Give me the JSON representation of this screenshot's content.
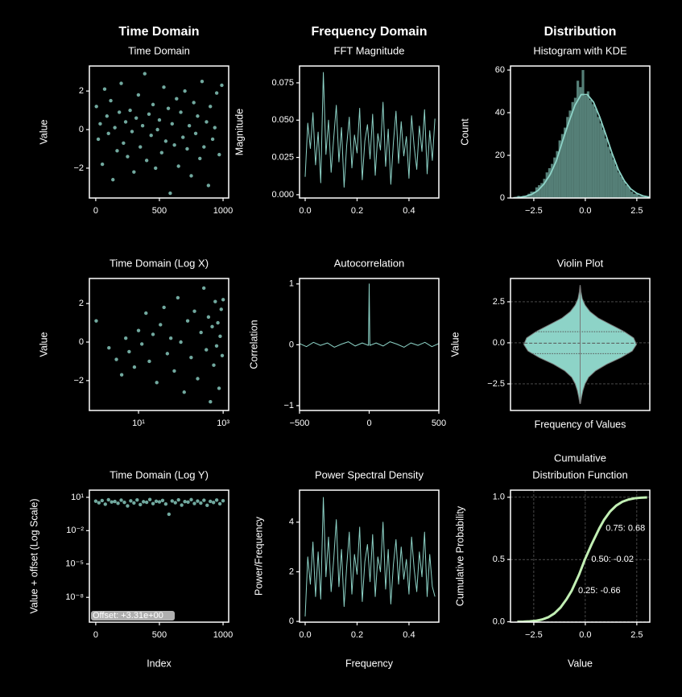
{
  "chart_data": [
    {
      "type": "scatter",
      "header": "Time Domain",
      "title": "Time Domain",
      "ylabel": "Value",
      "color": "#8dd3c7",
      "xlim": [
        -50,
        1044
      ],
      "ylim": [
        -3.55,
        3.3
      ],
      "xticks": [
        0,
        500,
        1000
      ],
      "yticks": [
        {
          "value": -2,
          "label": "−2"
        },
        0,
        2
      ],
      "x": [
        5,
        20,
        35,
        52,
        70,
        88,
        100,
        118,
        135,
        150,
        168,
        185,
        200,
        218,
        235,
        250,
        270,
        285,
        300,
        318,
        335,
        350,
        368,
        385,
        400,
        418,
        435,
        450,
        470,
        485,
        500,
        518,
        535,
        550,
        570,
        585,
        600,
        618,
        635,
        650,
        668,
        685,
        700,
        718,
        735,
        750,
        770,
        785,
        800,
        818,
        835,
        850,
        870,
        885,
        900,
        918,
        935,
        950,
        970,
        990
      ],
      "values": [
        1.2,
        -0.5,
        0.3,
        -1.8,
        2.1,
        0.7,
        -0.2,
        1.5,
        -2.6,
        0.1,
        -1.1,
        0.9,
        2.4,
        -0.7,
        0.4,
        -1.4,
        1.0,
        -0.1,
        -2.2,
        0.6,
        1.8,
        -0.9,
        0.2,
        2.9,
        -1.6,
        0.8,
        -0.3,
        1.3,
        -2.0,
        0.0,
        0.5,
        -1.2,
        2.2,
        -0.6,
        1.1,
        -3.3,
        0.3,
        -0.8,
        1.6,
        -1.9,
        0.9,
        -0.4,
        2.0,
        -1.0,
        0.2,
        -2.4,
        1.4,
        -0.2,
        0.7,
        -1.5,
        2.5,
        -0.9,
        0.4,
        -2.9,
        1.2,
        -0.5,
        0.1,
        1.9,
        -1.3,
        2.3
      ]
    },
    {
      "type": "line",
      "header": "Frequency Domain",
      "title": "FFT Magnitude",
      "ylabel": "Magnitude",
      "color": "#8dd3c7",
      "xlim": [
        -0.0217,
        0.515
      ],
      "ylim": [
        -0.0022,
        0.0863
      ],
      "xticks": [
        {
          "value": 0,
          "label": "0.0"
        },
        0.2,
        0.4
      ],
      "yticks": [
        {
          "value": 0,
          "label": "0.000"
        },
        {
          "value": 0.025,
          "label": "0.025"
        },
        {
          "value": 0.05,
          "label": "0.050"
        },
        {
          "value": 0.075,
          "label": "0.075"
        }
      ],
      "x": [
        0,
        0.01,
        0.02,
        0.03,
        0.04,
        0.05,
        0.06,
        0.07,
        0.08,
        0.09,
        0.1,
        0.11,
        0.12,
        0.13,
        0.14,
        0.15,
        0.16,
        0.17,
        0.18,
        0.19,
        0.2,
        0.21,
        0.22,
        0.23,
        0.24,
        0.25,
        0.26,
        0.27,
        0.28,
        0.29,
        0.3,
        0.31,
        0.32,
        0.33,
        0.34,
        0.35,
        0.36,
        0.37,
        0.38,
        0.39,
        0.4,
        0.41,
        0.42,
        0.43,
        0.44,
        0.45,
        0.46,
        0.47,
        0.48,
        0.49,
        0.5
      ],
      "values": [
        0.012,
        0.048,
        0.031,
        0.055,
        0.02,
        0.042,
        0.008,
        0.082,
        0.027,
        0.05,
        0.015,
        0.038,
        0.06,
        0.022,
        0.045,
        0.005,
        0.033,
        0.052,
        0.018,
        0.04,
        0.028,
        0.058,
        0.01,
        0.036,
        0.047,
        0.024,
        0.054,
        0.013,
        0.041,
        0.03,
        0.062,
        0.019,
        0.044,
        0.007,
        0.035,
        0.056,
        0.021,
        0.049,
        0.026,
        0.039,
        0.011,
        0.053,
        0.032,
        0.017,
        0.046,
        0.029,
        0.057,
        0.014,
        0.043,
        0.023,
        0.051
      ]
    },
    {
      "type": "histogram",
      "header": "Distribution",
      "title": "Histogram with KDE",
      "ylabel": "Count",
      "color": "#8dd3c7",
      "xlim": [
        -3.63,
        3.13
      ],
      "ylim": [
        0,
        61.9
      ],
      "xticks": [
        {
          "value": -2.5,
          "label": "−2.5"
        },
        {
          "value": 0,
          "label": "0.0"
        },
        2.5
      ],
      "yticks": [
        0,
        20,
        40,
        60
      ],
      "bins": [
        -3.3,
        -3.175,
        -3.05,
        -2.925,
        -2.8,
        -2.675,
        -2.55,
        -2.425,
        -2.3,
        -2.175,
        -2.05,
        -1.925,
        -1.8,
        -1.675,
        -1.55,
        -1.425,
        -1.3,
        -1.175,
        -1.05,
        -0.925,
        -0.8,
        -0.675,
        -0.55,
        -0.425,
        -0.3,
        -0.175,
        -0.05,
        0.075,
        0.2,
        0.325,
        0.45,
        0.575,
        0.7,
        0.825,
        0.95,
        1.075,
        1.2,
        1.325,
        1.45,
        1.575,
        1.7,
        1.825,
        1.95,
        2.075,
        2.2,
        2.325,
        2.45,
        2.575,
        2.7,
        2.825,
        2.95
      ],
      "values": [
        1,
        0,
        1,
        1,
        2,
        3,
        3,
        5,
        6,
        7,
        9,
        12,
        14,
        16,
        19,
        22,
        27,
        30,
        33,
        38,
        41,
        45,
        47,
        55,
        52,
        60,
        48,
        50,
        46,
        44,
        42,
        38,
        35,
        32,
        28,
        24,
        21,
        18,
        15,
        12,
        10,
        8,
        6,
        5,
        3,
        2,
        2,
        1,
        1,
        1
      ],
      "kde": {
        "x": [
          -3.5,
          -3.2,
          -2.9,
          -2.6,
          -2.3,
          -2.0,
          -1.7,
          -1.4,
          -1.1,
          -0.8,
          -0.5,
          -0.2,
          0.1,
          0.4,
          0.7,
          1.0,
          1.3,
          1.6,
          1.9,
          2.2,
          2.5,
          2.8,
          3.1
        ],
        "values": [
          0.1,
          0.3,
          0.8,
          1.7,
          3.5,
          6.6,
          11.1,
          17.5,
          26.8,
          35.5,
          43.5,
          48.5,
          48.5,
          45,
          38,
          29.7,
          21,
          13.4,
          8,
          4.3,
          2.2,
          1,
          0.4
        ]
      }
    },
    {
      "type": "scatter",
      "title": "Time Domain (Log X)",
      "ylabel": "Value",
      "color": "#8dd3c7",
      "xscale": "log",
      "xlim": [
        0.69,
        1350
      ],
      "ylim": [
        -3.55,
        3.3
      ],
      "xticks": [
        {
          "value": 10,
          "label": "10¹"
        },
        {
          "value": 1000,
          "label": "10³"
        }
      ],
      "yticks": [
        {
          "value": -2,
          "label": "−2"
        },
        0,
        2
      ],
      "x": [
        1,
        2,
        3,
        4,
        5,
        6,
        8,
        10,
        12,
        15,
        18,
        22,
        27,
        33,
        40,
        48,
        58,
        70,
        85,
        100,
        120,
        145,
        175,
        210,
        250,
        300,
        350,
        400,
        450,
        500,
        550,
        600,
        650,
        700,
        750,
        800,
        850,
        900,
        950,
        1000
      ],
      "values": [
        1.1,
        -0.3,
        -0.9,
        -1.7,
        0.2,
        -0.5,
        -1.3,
        0.6,
        -0.1,
        1.5,
        -1.0,
        0.4,
        -2.1,
        0.9,
        1.8,
        -0.6,
        0.2,
        -1.5,
        2.3,
        0.0,
        -2.6,
        1.1,
        -0.8,
        1.6,
        -1.9,
        0.5,
        2.8,
        -0.4,
        1.3,
        -3.1,
        0.8,
        -1.2,
        2.1,
        -0.2,
        1.0,
        -2.4,
        0.3,
        1.7,
        -0.7,
        2.2
      ]
    },
    {
      "type": "line",
      "title": "Autocorrelation",
      "ylabel": "Correlation",
      "color": "#8dd3c7",
      "xlim": [
        -500,
        500
      ],
      "ylim": [
        -1.08,
        1.09
      ],
      "xticks": [
        {
          "value": -500,
          "label": "−500"
        },
        0,
        500
      ],
      "yticks": [
        {
          "value": -1,
          "label": "−1"
        },
        0,
        1
      ],
      "x": [
        -500,
        -450,
        -400,
        -350,
        -300,
        -250,
        -200,
        -150,
        -100,
        -50,
        -5,
        0,
        5,
        50,
        100,
        150,
        200,
        250,
        300,
        350,
        400,
        450,
        500
      ],
      "values": [
        0.02,
        -0.03,
        0.04,
        -0.01,
        0.03,
        -0.04,
        0.01,
        0.05,
        -0.02,
        0.03,
        -0.01,
        1,
        -0.01,
        0.03,
        -0.02,
        0.05,
        0.01,
        -0.04,
        0.03,
        -0.01,
        0.04,
        -0.03,
        0.02
      ]
    },
    {
      "type": "violin",
      "title": "Violin Plot",
      "ylabel": "Value",
      "xlabel": "Frequency of Values",
      "color": "#8dd3c7",
      "grid": "y",
      "ylim": [
        -4.12,
        3.92
      ],
      "yticks": [
        {
          "value": -2.5,
          "label": "−2.5"
        },
        {
          "value": 0,
          "label": "0.0"
        },
        2.5
      ],
      "y": [
        -3.7,
        -3.3,
        -2.9,
        -2.5,
        -2.1,
        -1.7,
        -1.3,
        -0.9,
        -0.5,
        -0.1,
        0.3,
        0.7,
        1.1,
        1.5,
        1.9,
        2.3,
        2.7,
        3.1,
        3.5
      ],
      "density": [
        0.002,
        0.01,
        0.02,
        0.035,
        0.06,
        0.11,
        0.19,
        0.29,
        0.37,
        0.4,
        0.38,
        0.31,
        0.22,
        0.13,
        0.07,
        0.035,
        0.015,
        0.006,
        0.001
      ],
      "quartiles": [
        -0.66,
        -0.02,
        0.68
      ]
    },
    {
      "type": "scatter",
      "title": "Time Domain (Log Y)",
      "ylabel": "Value + offset (Log Scale)",
      "xlabel": "Index",
      "color": "#8dd3c7",
      "yscale": "log",
      "annotation": "Offset: +3.31e+00",
      "xlim": [
        -50,
        1044
      ],
      "ylim": [
        5.9e-11,
        44
      ],
      "xticks": [
        0,
        500,
        1000
      ],
      "yticks": [
        {
          "value": 1e-08,
          "label": "10⁻⁸"
        },
        {
          "value": 1e-05,
          "label": "10⁻⁵"
        },
        {
          "value": 0.01,
          "label": "10⁻²"
        },
        {
          "value": 10,
          "label": "10¹"
        }
      ],
      "x": [
        0,
        25,
        50,
        75,
        100,
        125,
        150,
        175,
        200,
        225,
        250,
        275,
        300,
        325,
        350,
        375,
        400,
        425,
        450,
        475,
        500,
        525,
        550,
        575,
        600,
        625,
        650,
        675,
        700,
        725,
        750,
        775,
        800,
        825,
        850,
        875,
        900,
        925,
        950,
        975,
        1000
      ],
      "values": [
        4.5,
        3.2,
        5.1,
        2.4,
        6.0,
        3.8,
        4.2,
        2.9,
        5.5,
        3.5,
        1.7,
        4.8,
        3.1,
        5.8,
        2.2,
        4.0,
        3.6,
        6.3,
        2.7,
        4.4,
        3.9,
        5.2,
        2.5,
        0.3,
        4.7,
        3.3,
        5.9,
        2.0,
        4.1,
        3.7,
        6.1,
        2.8,
        4.6,
        3.0,
        5.4,
        1.9,
        4.3,
        3.4,
        5.6,
        2.6,
        4.9
      ]
    },
    {
      "type": "line",
      "title": "Power Spectral Density",
      "ylabel": "Power/Frequency",
      "xlabel": "Frequency",
      "color": "#8dd3c7",
      "xlim": [
        -0.0217,
        0.515
      ],
      "ylim": [
        -0.03,
        5.29
      ],
      "xticks": [
        {
          "value": 0,
          "label": "0.0"
        },
        0.2,
        0.4
      ],
      "yticks": [
        0,
        2,
        4
      ],
      "x": [
        0,
        0.01,
        0.02,
        0.03,
        0.04,
        0.05,
        0.06,
        0.07,
        0.08,
        0.09,
        0.1,
        0.11,
        0.12,
        0.13,
        0.14,
        0.15,
        0.16,
        0.17,
        0.18,
        0.19,
        0.2,
        0.21,
        0.22,
        0.23,
        0.24,
        0.25,
        0.26,
        0.27,
        0.28,
        0.29,
        0.3,
        0.31,
        0.32,
        0.33,
        0.34,
        0.35,
        0.36,
        0.37,
        0.38,
        0.39,
        0.4,
        0.41,
        0.42,
        0.43,
        0.44,
        0.45,
        0.46,
        0.47,
        0.48,
        0.49,
        0.5
      ],
      "values": [
        0.2,
        2.6,
        1.5,
        3.2,
        1.0,
        2.8,
        0.9,
        5.0,
        1.8,
        3.4,
        1.2,
        2.5,
        4.1,
        1.4,
        2.9,
        0.6,
        2.2,
        3.6,
        1.1,
        2.7,
        1.9,
        3.8,
        0.8,
        2.4,
        3.1,
        1.6,
        3.5,
        1.0,
        2.6,
        2.0,
        4.0,
        1.3,
        2.9,
        0.7,
        2.3,
        3.3,
        1.5,
        3.0,
        1.7,
        2.5,
        1.1,
        3.4,
        2.1,
        1.2,
        2.8,
        1.8,
        3.6,
        1.0,
        2.7,
        1.4,
        1.0
      ]
    },
    {
      "type": "line",
      "title": [
        "Cumulative",
        "Distribution Function"
      ],
      "ylabel": "Cumulative Probability",
      "xlabel": "Value",
      "color": "#c2efb4",
      "grid": "both",
      "xlim": [
        -3.63,
        3.13
      ],
      "ylim": [
        -0.003,
        1.057
      ],
      "xticks": [
        {
          "value": -2.5,
          "label": "−2.5"
        },
        {
          "value": 0,
          "label": "0.0"
        },
        2.5
      ],
      "yticks": [
        {
          "value": 0,
          "label": "0.0"
        },
        0.5,
        {
          "value": 1,
          "label": "1.0"
        }
      ],
      "x": [
        -3.3,
        -3.0,
        -2.7,
        -2.4,
        -2.1,
        -1.8,
        -1.5,
        -1.2,
        -0.9,
        -0.66,
        -0.3,
        -0.02,
        0.3,
        0.68,
        0.9,
        1.2,
        1.5,
        1.8,
        2.1,
        2.4,
        2.7,
        3.0
      ],
      "values": [
        0.0005,
        0.0013,
        0.0035,
        0.008,
        0.018,
        0.036,
        0.067,
        0.115,
        0.184,
        0.25,
        0.38,
        0.5,
        0.62,
        0.75,
        0.816,
        0.885,
        0.933,
        0.964,
        0.982,
        0.992,
        0.9965,
        0.9987
      ],
      "annotations": [
        {
          "x": -0.66,
          "y": 0.25,
          "text": "0.25: -0.66"
        },
        {
          "x": -0.02,
          "y": 0.5,
          "text": "0.50: -0.02"
        },
        {
          "x": 0.68,
          "y": 0.75,
          "text": "0.75: 0.68"
        }
      ]
    }
  ]
}
